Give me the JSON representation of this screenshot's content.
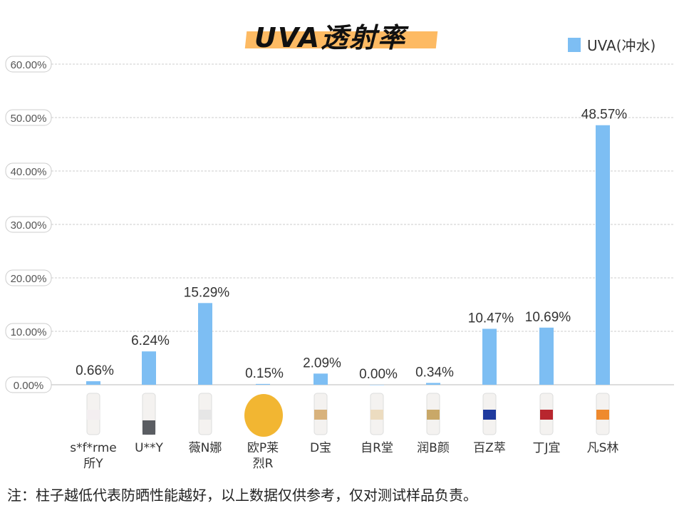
{
  "chart_data": {
    "type": "bar",
    "title": "UVA透射率",
    "categories": [
      "s*f*rme 所Y",
      "U**Y",
      "薇N娜",
      "欧P莱 烈R",
      "D宝",
      "自R堂",
      "润B颜",
      "百Z萃",
      "丁J宜",
      "凡S林"
    ],
    "category_lines": [
      [
        "s*f*rme",
        "所Y"
      ],
      [
        "U**Y"
      ],
      [
        "薇N娜"
      ],
      [
        "欧P莱",
        "烈R"
      ],
      [
        "D宝"
      ],
      [
        "自R堂"
      ],
      [
        "润B颜"
      ],
      [
        "百Z萃"
      ],
      [
        "丁J宜"
      ],
      [
        "凡S林"
      ]
    ],
    "series": [
      {
        "name": "UVA(冲水)",
        "values": [
          0.66,
          6.24,
          15.29,
          0.15,
          2.09,
          0.0,
          0.34,
          10.47,
          10.69,
          48.57
        ],
        "color": "#7DBEF3"
      }
    ],
    "data_labels": [
      "0.66%",
      "6.24%",
      "15.29%",
      "0.15%",
      "2.09%",
      "0.00%",
      "0.34%",
      "10.47%",
      "10.69%",
      "48.57%"
    ],
    "yticks": [
      "0.00%",
      "10.00%",
      "20.00%",
      "30.00%",
      "40.00%",
      "50.00%",
      "60.00%"
    ],
    "ylim": [
      0,
      60
    ],
    "grid": true,
    "legend_position": "top-right",
    "product_colors": [
      "#f3eef0",
      "#5a5d62",
      "#e6e6e6",
      "#f2b632",
      "#d8b27c",
      "#ecdcc0",
      "#c9a868",
      "#1f3a9e",
      "#b8262e",
      "#ef8a2e"
    ]
  },
  "title_accent": "#FDBA63",
  "note": "注：柱子越低代表防晒性能越好，以上数据仅供参考，仅对测试样品负责。"
}
